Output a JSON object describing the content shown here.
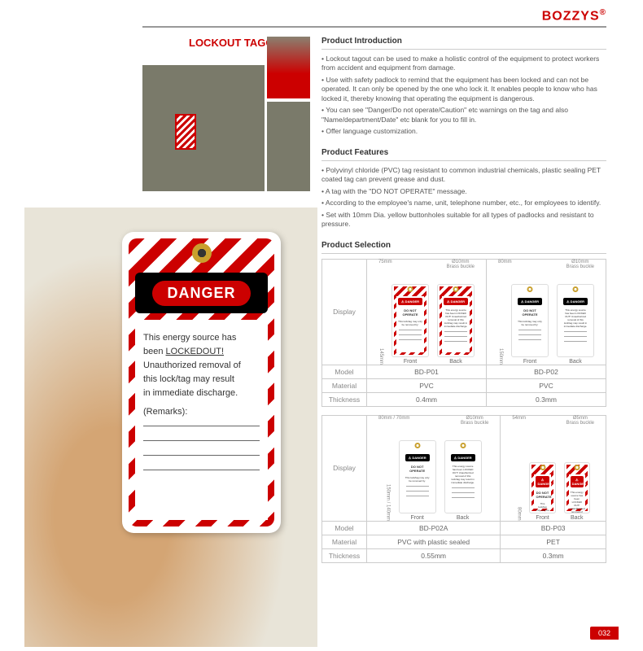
{
  "brand": "BOZZYS",
  "page_title": "LOCKOUT TAGOUT",
  "page_number": "032",
  "big_tag": {
    "danger": "DANGER",
    "line1": "This energy source has",
    "line2_prefix": "been ",
    "line2_underline": "LOCKEDOUT!",
    "line3": "Unauthorized removal of",
    "line4": "this lock/tag may result",
    "line5": "in immediate discharge.",
    "remarks": "(Remarks):"
  },
  "sections": {
    "intro": {
      "title": "Product Introduction",
      "items": [
        "Lockout tagout can be used to make a holistic control of the equipment to protect workers from accident and equipment from damage.",
        "Use with safety padlock to remind that the equipment has been locked and can not be operated. It can only be opened by the one who lock it. It enables people to know who has locked it, thereby knowing that operating the equipment is dangerous.",
        "You can see \"Danger/Do not operate/Caution\" etc warnings on the tag and also \"Name/department/Date\" etc blank for you to fill in.",
        "Offer language customization."
      ]
    },
    "features": {
      "title": "Product Features",
      "items": [
        "Polyvinyl chloride (PVC) tag resistant to common industrial chemicals, plastic sealing PET coated tag can prevent grease and dust.",
        "A tag with the \"DO NOT OPERATE\" message.",
        "According to the employee's name, unit, telephone number, etc., for employees to identify.",
        "Set with 10mm Dia. yellow buttonholes suitable for all types of padlocks and resistant to pressure."
      ]
    },
    "selection": {
      "title": "Product Selection"
    }
  },
  "labels": {
    "display": "Display",
    "model": "Model",
    "material": "Material",
    "thickness": "Thickness",
    "front": "Front",
    "back": "Back",
    "buckle": "Brass buckle",
    "danger": "DANGER",
    "dno": "DO NOT OPERATE"
  },
  "products": [
    {
      "left": {
        "w": "75mm",
        "h": "145mm",
        "hole": "Ø10mm",
        "model": "BD-P01",
        "material": "PVC",
        "thickness": "0.4mm",
        "front_striped": true,
        "back_striped": true
      },
      "right": {
        "w": "80mm",
        "h": "150mm",
        "hole": "Ø10mm",
        "model": "BD-P02",
        "material": "PVC",
        "thickness": "0.3mm",
        "front_striped": false,
        "back_striped": false
      }
    },
    {
      "left": {
        "w": "80mm",
        "w2": "70mm",
        "h": "150mm",
        "h2": "140mm",
        "hole": "Ø10mm",
        "model": "BD-P02A",
        "material": "PVC  with plastic sealed",
        "thickness": "0.55mm",
        "front_striped": false,
        "back_striped": false
      },
      "right": {
        "w": "54mm",
        "h": "80mm",
        "hole": "Ø5mm",
        "model": "BD-P03",
        "material": "PET",
        "thickness": "0.3mm",
        "front_striped": true,
        "back_striped": true
      }
    }
  ]
}
